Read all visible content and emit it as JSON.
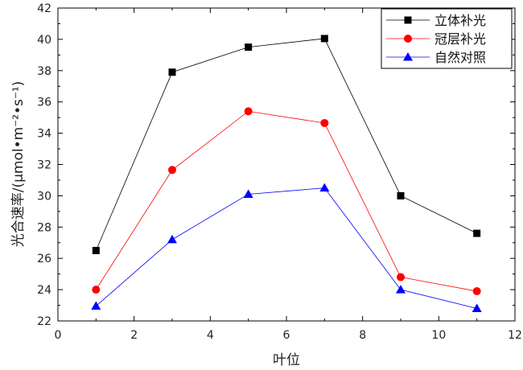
{
  "chart_data": {
    "type": "line",
    "title": "",
    "xlabel": "叶位",
    "ylabel": "光合速率/(μmol•m⁻²•s⁻¹)",
    "xlim": [
      0,
      12
    ],
    "ylim": [
      22,
      42
    ],
    "xticks": [
      0,
      2,
      4,
      6,
      8,
      10,
      12
    ],
    "yticks": [
      22,
      24,
      26,
      28,
      30,
      32,
      34,
      36,
      38,
      40,
      42
    ],
    "grid": false,
    "legend_position": "top-right",
    "x": [
      1,
      3,
      5,
      7,
      9,
      11
    ],
    "series": [
      {
        "name": "立体补光",
        "color": "#000000",
        "marker": "square",
        "values": [
          26.5,
          37.9,
          39.5,
          40.05,
          30.0,
          27.6
        ]
      },
      {
        "name": "冠层补光",
        "color": "#ff0000",
        "marker": "circle",
        "values": [
          24.0,
          31.65,
          35.4,
          34.65,
          24.8,
          23.9
        ]
      },
      {
        "name": "自然对照",
        "color": "#0000ff",
        "marker": "triangle",
        "values": [
          22.95,
          27.2,
          30.1,
          30.5,
          24.0,
          22.8
        ]
      }
    ]
  }
}
